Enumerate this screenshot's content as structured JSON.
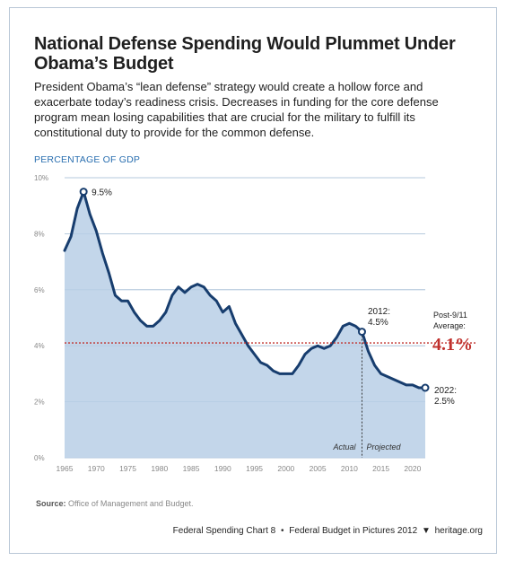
{
  "header": {
    "title": "National Defense Spending Would Plummet Under Obama’s Budget",
    "subtitle": "President Obama’s “lean defense” strategy would create a hollow force and exacerbate today’s readiness crisis. Decreases in funding for the core defense program mean losing capabilities that are crucial for the military to fulfill its constitutional duty to provide for the common defense."
  },
  "chart_data": {
    "type": "area",
    "ylabel": "PERCENTAGE OF GDP",
    "xlabel": "",
    "xlim": [
      1965,
      2022
    ],
    "ylim": [
      0,
      10
    ],
    "x_ticks": [
      1965,
      1970,
      1975,
      1980,
      1985,
      1990,
      1995,
      2000,
      2005,
      2010,
      2015,
      2020
    ],
    "y_ticks": [
      {
        "value": 0,
        "label": "0%"
      },
      {
        "value": 2,
        "label": "2%"
      },
      {
        "value": 4,
        "label": "4%"
      },
      {
        "value": 6,
        "label": "6%"
      },
      {
        "value": 8,
        "label": "8%"
      },
      {
        "value": 10,
        "label": "10%"
      }
    ],
    "grid": true,
    "series": [
      {
        "x": [
          1965,
          1966,
          1967,
          1968,
          1969,
          1970,
          1971,
          1972,
          1973,
          1974,
          1975,
          1976,
          1977,
          1978,
          1979,
          1980,
          1981,
          1982,
          1983,
          1984,
          1985,
          1986,
          1987,
          1988,
          1989,
          1990,
          1991,
          1992,
          1993,
          1994,
          1995,
          1996,
          1997,
          1998,
          1999,
          2000,
          2001,
          2002,
          2003,
          2004,
          2005,
          2006,
          2007,
          2008,
          2009,
          2010,
          2011,
          2012,
          2013,
          2014,
          2015,
          2016,
          2017,
          2018,
          2019,
          2020,
          2021,
          2022
        ],
        "y": [
          7.4,
          7.9,
          8.9,
          9.5,
          8.7,
          8.1,
          7.3,
          6.6,
          5.8,
          5.6,
          5.6,
          5.2,
          4.9,
          4.7,
          4.7,
          4.9,
          5.2,
          5.8,
          6.1,
          5.9,
          6.1,
          6.2,
          6.1,
          5.8,
          5.6,
          5.2,
          5.4,
          4.8,
          4.4,
          4.0,
          3.7,
          3.4,
          3.3,
          3.1,
          3.0,
          3.0,
          3.0,
          3.3,
          3.7,
          3.9,
          4.0,
          3.9,
          4.0,
          4.3,
          4.7,
          4.8,
          4.7,
          4.5,
          3.8,
          3.3,
          3.0,
          2.9,
          2.8,
          2.7,
          2.6,
          2.6,
          2.5,
          2.5
        ]
      }
    ],
    "annotations": {
      "peak": {
        "x": 1968,
        "y": 9.5,
        "label": "9.5%"
      },
      "y2012": {
        "x": 2012,
        "y": 4.5,
        "year_label": "2012:",
        "value_label": "4.5%"
      },
      "y2022": {
        "x": 2022,
        "y": 2.5,
        "year_label": "2022:",
        "value_label": "2.5%"
      },
      "average": {
        "y": 4.1,
        "label_line1": "Post-9/11",
        "label_line2": "Average:",
        "value_label": "4.1%"
      },
      "split": {
        "x": 2012,
        "left_label": "Actual",
        "right_label": "Projected"
      }
    },
    "colors": {
      "line": "#173d6e",
      "fill": "#b9cfe6",
      "grid": "#9eb8d2",
      "average": "#c0302c",
      "tick_text": "#888888",
      "axis_label": "#2a6fb0"
    }
  },
  "source": {
    "label": "Source:",
    "text": "Office of Management and Budget."
  },
  "footer": {
    "chart_name": "Federal Spending Chart 8",
    "separator": "•",
    "publication": "Federal Budget in Pictures 2012",
    "site": "heritage.org",
    "logo_icon": "liberty-bell-icon"
  }
}
